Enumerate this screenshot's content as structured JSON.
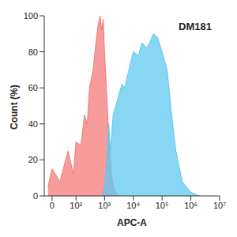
{
  "chart_data": {
    "type": "area",
    "annotations": [
      "DM181"
    ],
    "x_label": "APC-A",
    "y_label": "Count (%)",
    "log": "x",
    "xlim": [
      -20,
      10000000
    ],
    "xticks": [
      0,
      {
        "value": 100,
        "label": "10²"
      },
      {
        "value": 1000,
        "label": "10³"
      },
      {
        "value": 10000,
        "label": "10⁴"
      },
      {
        "value": 100000,
        "label": "10⁵"
      },
      {
        "value": 1000000,
        "label": "10⁶"
      },
      {
        "value": 10000000,
        "label": "10⁷"
      }
    ],
    "ylim": [
      0,
      100
    ],
    "yticks": [
      0,
      20,
      40,
      60,
      80,
      100
    ],
    "series": [
      {
        "color": "#f47a7a",
        "x": [
          -10,
          0,
          20,
          50,
          80,
          100,
          150,
          200,
          250,
          300,
          400,
          500,
          600,
          700,
          800,
          900,
          1000,
          1200,
          1500,
          1800,
          2200,
          3000
        ],
        "values": [
          5,
          15,
          8,
          25,
          12,
          30,
          28,
          45,
          40,
          60,
          70,
          85,
          95,
          100,
          92,
          98,
          80,
          55,
          25,
          10,
          3,
          0
        ]
      },
      {
        "color": "#5ec8f0",
        "x": [
          800,
          1000,
          1200,
          1400,
          1600,
          2000,
          2500,
          3000,
          4000,
          5000,
          7000,
          10000,
          15000,
          20000,
          30000,
          50000,
          70000,
          100000,
          150000,
          200000,
          300000,
          500000,
          1000000,
          2000000
        ],
        "values": [
          0,
          5,
          20,
          40,
          25,
          45,
          50,
          55,
          62,
          60,
          70,
          80,
          78,
          85,
          82,
          90,
          88,
          80,
          70,
          50,
          25,
          8,
          2,
          0
        ]
      }
    ]
  }
}
